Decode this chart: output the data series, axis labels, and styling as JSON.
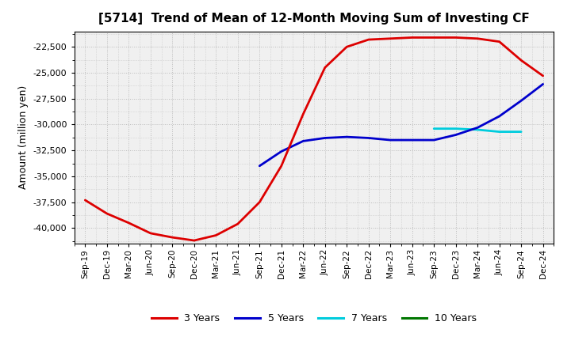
{
  "title": "[5714]  Trend of Mean of 12-Month Moving Sum of Investing CF",
  "ylabel": "Amount (million yen)",
  "ylim": [
    -41500,
    -21000
  ],
  "yticks": [
    -40000,
    -37500,
    -35000,
    -32500,
    -30000,
    -27500,
    -25000,
    -22500
  ],
  "background_color": "#ffffff",
  "plot_bg_color": "#f0f0f0",
  "grid_color": "#bbbbbb",
  "x_labels": [
    "Sep-19",
    "Dec-19",
    "Mar-20",
    "Jun-20",
    "Sep-20",
    "Dec-20",
    "Mar-21",
    "Jun-21",
    "Sep-21",
    "Dec-21",
    "Mar-22",
    "Jun-22",
    "Sep-22",
    "Dec-22",
    "Mar-23",
    "Jun-23",
    "Sep-23",
    "Dec-23",
    "Mar-24",
    "Jun-24",
    "Sep-24",
    "Dec-24"
  ],
  "series": {
    "3 Years": {
      "color": "#dd0000",
      "data_x": [
        0,
        1,
        2,
        3,
        4,
        5,
        6,
        7,
        8,
        9,
        10,
        11,
        12,
        13,
        14,
        15,
        16,
        17,
        18,
        19,
        20,
        21
      ],
      "data_y": [
        -37300,
        -38600,
        -39500,
        -40500,
        -40900,
        -41200,
        -40700,
        -39600,
        -37500,
        -34000,
        -29000,
        -24500,
        -22500,
        -21800,
        -21700,
        -21600,
        -21600,
        -21600,
        -21700,
        -22000,
        -23800,
        -25300
      ]
    },
    "5 Years": {
      "color": "#0000cc",
      "data_x": [
        8,
        9,
        10,
        11,
        12,
        13,
        14,
        15,
        16,
        17,
        18,
        19,
        20,
        21
      ],
      "data_y": [
        -34000,
        -32600,
        -31600,
        -31300,
        -31200,
        -31300,
        -31500,
        -31500,
        -31500,
        -31000,
        -30300,
        -29200,
        -27700,
        -26100
      ]
    },
    "7 Years": {
      "color": "#00ccdd",
      "data_x": [
        16,
        17,
        18,
        19,
        20
      ],
      "data_y": [
        -30400,
        -30400,
        -30500,
        -30700,
        -30700
      ]
    },
    "10 Years": {
      "color": "#007700",
      "data_x": [],
      "data_y": []
    }
  },
  "legend_labels": [
    "3 Years",
    "5 Years",
    "7 Years",
    "10 Years"
  ],
  "legend_colors": [
    "#dd0000",
    "#0000cc",
    "#00ccdd",
    "#007700"
  ]
}
